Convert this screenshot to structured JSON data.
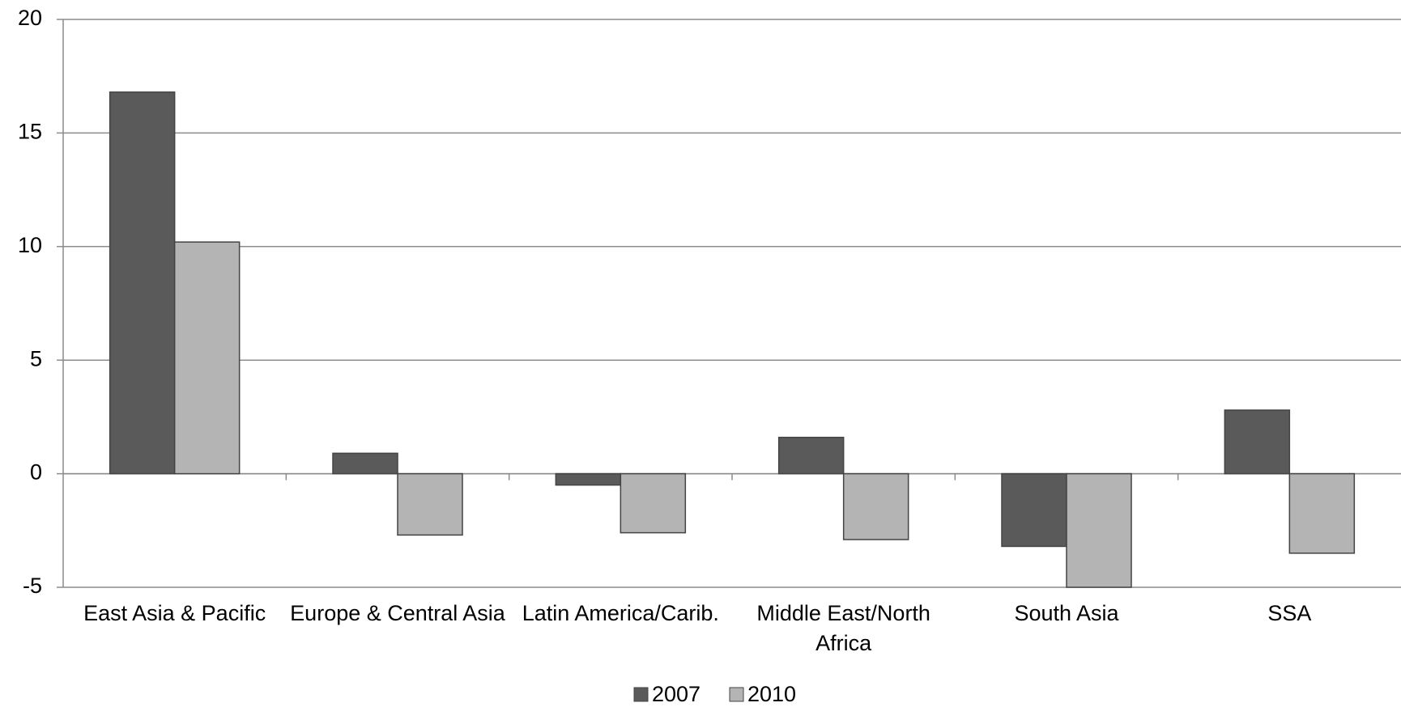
{
  "chart_data": {
    "type": "bar",
    "categories": [
      "East Asia & Pacific",
      "Europe & Central Asia",
      "Latin America/Carib.",
      "Middle East/North Africa",
      "South Asia",
      "SSA"
    ],
    "series": [
      {
        "name": "2007",
        "color": "#5a5a5a",
        "values": [
          16.8,
          0.9,
          -0.5,
          1.6,
          -3.2,
          2.8
        ]
      },
      {
        "name": "2010",
        "color": "#b4b4b4",
        "values": [
          10.2,
          -2.7,
          -2.6,
          -2.9,
          -5,
          -3.5
        ]
      }
    ],
    "ylim": [
      -5,
      20
    ],
    "yticks": [
      -5,
      0,
      5,
      10,
      15,
      20
    ],
    "grid": true
  }
}
